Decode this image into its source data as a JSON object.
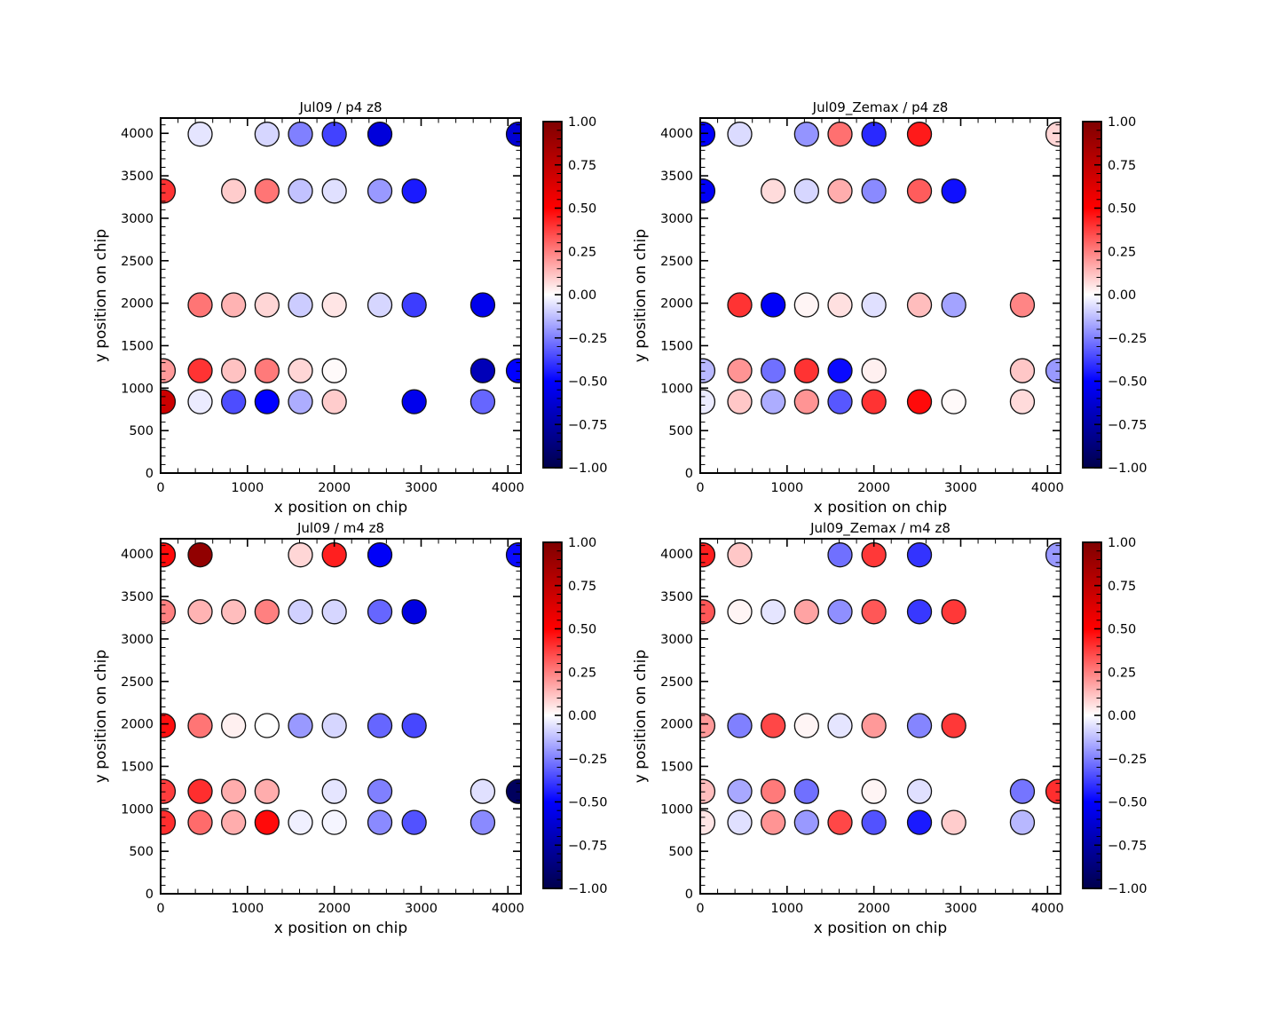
{
  "figure": {
    "background": "#ffffff"
  },
  "chart_data": [
    {
      "id": "jul09_p4",
      "type": "scatter",
      "title": "Jul09 / p4 z8",
      "xlabel": "x position on chip",
      "ylabel": "y position on chip",
      "xlim": [
        0,
        4150
      ],
      "ylim": [
        0,
        4180
      ],
      "x_tick_labels": [
        "0",
        "1000",
        "2000",
        "3000",
        "4000"
      ],
      "y_tick_labels": [
        "0",
        "500",
        "1000",
        "1500",
        "2000",
        "2500",
        "3000",
        "3500",
        "4000"
      ],
      "x_minor_step": 200,
      "y_minor_step": 100,
      "grid": false,
      "colorbar": {
        "cmap": "seismic",
        "vmin": -1,
        "vmax": 1,
        "minor_step": 0.05,
        "tick_labels": [
          "1.00",
          "0.75",
          "0.50",
          "0.25",
          "0.00",
          "−0.25",
          "−0.50",
          "−0.75",
          "−1.00"
        ]
      },
      "points": [
        {
          "x": 455,
          "y": 3990,
          "v": -0.05
        },
        {
          "x": 1225,
          "y": 3990,
          "v": -0.08
        },
        {
          "x": 1610,
          "y": 3990,
          "v": -0.25
        },
        {
          "x": 2000,
          "y": 3990,
          "v": -0.37
        },
        {
          "x": 2525,
          "y": 3990,
          "v": -0.6
        },
        {
          "x": 4120,
          "y": 3990,
          "v": -0.62
        },
        {
          "x": 30,
          "y": 3320,
          "v": 0.4
        },
        {
          "x": 840,
          "y": 3320,
          "v": 0.1
        },
        {
          "x": 1225,
          "y": 3320,
          "v": 0.27
        },
        {
          "x": 1610,
          "y": 3320,
          "v": -0.12
        },
        {
          "x": 2000,
          "y": 3320,
          "v": -0.06
        },
        {
          "x": 2525,
          "y": 3320,
          "v": -0.2
        },
        {
          "x": 2920,
          "y": 3320,
          "v": -0.45
        },
        {
          "x": 455,
          "y": 1980,
          "v": 0.27
        },
        {
          "x": 840,
          "y": 1980,
          "v": 0.15
        },
        {
          "x": 1225,
          "y": 1980,
          "v": 0.08
        },
        {
          "x": 1610,
          "y": 1980,
          "v": -0.1
        },
        {
          "x": 2000,
          "y": 1980,
          "v": 0.05
        },
        {
          "x": 2525,
          "y": 1980,
          "v": -0.08
        },
        {
          "x": 2920,
          "y": 1980,
          "v": -0.38
        },
        {
          "x": 3710,
          "y": 1980,
          "v": -0.55
        },
        {
          "x": 30,
          "y": 1205,
          "v": 0.2
        },
        {
          "x": 455,
          "y": 1205,
          "v": 0.4
        },
        {
          "x": 840,
          "y": 1205,
          "v": 0.12
        },
        {
          "x": 1225,
          "y": 1205,
          "v": 0.26
        },
        {
          "x": 1610,
          "y": 1205,
          "v": 0.08
        },
        {
          "x": 2000,
          "y": 1205,
          "v": 0.01
        },
        {
          "x": 3710,
          "y": 1205,
          "v": -0.7
        },
        {
          "x": 4120,
          "y": 1205,
          "v": -0.5
        },
        {
          "x": 30,
          "y": 840,
          "v": 0.7
        },
        {
          "x": 455,
          "y": 840,
          "v": -0.04
        },
        {
          "x": 840,
          "y": 840,
          "v": -0.35
        },
        {
          "x": 1225,
          "y": 840,
          "v": -0.5
        },
        {
          "x": 1610,
          "y": 840,
          "v": -0.16
        },
        {
          "x": 2000,
          "y": 840,
          "v": 0.1
        },
        {
          "x": 2920,
          "y": 840,
          "v": -0.55
        },
        {
          "x": 3710,
          "y": 840,
          "v": -0.3
        }
      ]
    },
    {
      "id": "jul09_zemax_p4",
      "type": "scatter",
      "title": "Jul09_Zemax / p4 z8",
      "xlabel": "x position on chip",
      "ylabel": "y position on chip",
      "xlim": [
        0,
        4150
      ],
      "ylim": [
        0,
        4180
      ],
      "x_tick_labels": [
        "0",
        "1000",
        "2000",
        "3000",
        "4000"
      ],
      "y_tick_labels": [
        "0",
        "500",
        "1000",
        "1500",
        "2000",
        "2500",
        "3000",
        "3500",
        "4000"
      ],
      "x_minor_step": 200,
      "y_minor_step": 100,
      "grid": false,
      "colorbar": {
        "cmap": "seismic",
        "vmin": -1,
        "vmax": 1,
        "minor_step": 0.05,
        "tick_labels": [
          "1.00",
          "0.75",
          "0.50",
          "0.25",
          "0.00",
          "−0.25",
          "−0.50",
          "−0.75",
          "−1.00"
        ]
      },
      "points": [
        {
          "x": 30,
          "y": 3990,
          "v": -0.5
        },
        {
          "x": 455,
          "y": 3990,
          "v": -0.07
        },
        {
          "x": 1225,
          "y": 3990,
          "v": -0.21
        },
        {
          "x": 1610,
          "y": 3990,
          "v": 0.28
        },
        {
          "x": 2000,
          "y": 3990,
          "v": -0.42
        },
        {
          "x": 2525,
          "y": 3990,
          "v": 0.45
        },
        {
          "x": 4120,
          "y": 3990,
          "v": 0.08
        },
        {
          "x": 30,
          "y": 3320,
          "v": -0.52
        },
        {
          "x": 840,
          "y": 3320,
          "v": 0.07
        },
        {
          "x": 1225,
          "y": 3320,
          "v": -0.08
        },
        {
          "x": 1610,
          "y": 3320,
          "v": 0.16
        },
        {
          "x": 2000,
          "y": 3320,
          "v": -0.23
        },
        {
          "x": 2525,
          "y": 3320,
          "v": 0.32
        },
        {
          "x": 2920,
          "y": 3320,
          "v": -0.47
        },
        {
          "x": 455,
          "y": 1980,
          "v": 0.4
        },
        {
          "x": 840,
          "y": 1980,
          "v": -0.52
        },
        {
          "x": 1225,
          "y": 1980,
          "v": 0.02
        },
        {
          "x": 1610,
          "y": 1980,
          "v": 0.06
        },
        {
          "x": 2000,
          "y": 1980,
          "v": -0.06
        },
        {
          "x": 2525,
          "y": 1980,
          "v": 0.13
        },
        {
          "x": 2920,
          "y": 1980,
          "v": -0.18
        },
        {
          "x": 3710,
          "y": 1980,
          "v": 0.24
        },
        {
          "x": 30,
          "y": 1205,
          "v": -0.14
        },
        {
          "x": 455,
          "y": 1205,
          "v": 0.21
        },
        {
          "x": 840,
          "y": 1205,
          "v": -0.28
        },
        {
          "x": 1225,
          "y": 1205,
          "v": 0.4
        },
        {
          "x": 1610,
          "y": 1205,
          "v": -0.48
        },
        {
          "x": 2000,
          "y": 1205,
          "v": 0.03
        },
        {
          "x": 3710,
          "y": 1205,
          "v": 0.11
        },
        {
          "x": 4120,
          "y": 1205,
          "v": -0.2
        },
        {
          "x": 30,
          "y": 840,
          "v": -0.04
        },
        {
          "x": 455,
          "y": 840,
          "v": 0.11
        },
        {
          "x": 840,
          "y": 840,
          "v": -0.16
        },
        {
          "x": 1225,
          "y": 840,
          "v": 0.21
        },
        {
          "x": 1610,
          "y": 840,
          "v": -0.33
        },
        {
          "x": 2000,
          "y": 840,
          "v": 0.4
        },
        {
          "x": 2525,
          "y": 840,
          "v": 0.48
        },
        {
          "x": 2920,
          "y": 840,
          "v": 0.01
        },
        {
          "x": 3710,
          "y": 840,
          "v": 0.07
        }
      ]
    },
    {
      "id": "jul09_m4",
      "type": "scatter",
      "title": "Jul09 / m4 z8",
      "xlabel": "x position on chip",
      "ylabel": "y position on chip",
      "xlim": [
        0,
        4150
      ],
      "ylim": [
        0,
        4180
      ],
      "x_tick_labels": [
        "0",
        "1000",
        "2000",
        "3000",
        "4000"
      ],
      "y_tick_labels": [
        "0",
        "500",
        "1000",
        "1500",
        "2000",
        "2500",
        "3000",
        "3500",
        "4000"
      ],
      "x_minor_step": 200,
      "y_minor_step": 100,
      "grid": false,
      "colorbar": {
        "cmap": "seismic",
        "vmin": -1,
        "vmax": 1,
        "minor_step": 0.05,
        "tick_labels": [
          "1.00",
          "0.75",
          "0.50",
          "0.25",
          "0.00",
          "−0.25",
          "−0.50",
          "−0.75",
          "−1.00"
        ]
      },
      "points": [
        {
          "x": 30,
          "y": 3990,
          "v": 0.48
        },
        {
          "x": 455,
          "y": 3990,
          "v": 0.93
        },
        {
          "x": 1610,
          "y": 3990,
          "v": 0.08
        },
        {
          "x": 2000,
          "y": 3990,
          "v": 0.44
        },
        {
          "x": 2525,
          "y": 3990,
          "v": -0.52
        },
        {
          "x": 4120,
          "y": 3990,
          "v": -0.48
        },
        {
          "x": 30,
          "y": 3320,
          "v": 0.25
        },
        {
          "x": 455,
          "y": 3320,
          "v": 0.15
        },
        {
          "x": 840,
          "y": 3320,
          "v": 0.13
        },
        {
          "x": 1225,
          "y": 3320,
          "v": 0.25
        },
        {
          "x": 1610,
          "y": 3320,
          "v": -0.09
        },
        {
          "x": 2000,
          "y": 3320,
          "v": -0.08
        },
        {
          "x": 2525,
          "y": 3320,
          "v": -0.3
        },
        {
          "x": 2920,
          "y": 3320,
          "v": -0.58
        },
        {
          "x": 30,
          "y": 1980,
          "v": 0.47
        },
        {
          "x": 455,
          "y": 1980,
          "v": 0.27
        },
        {
          "x": 840,
          "y": 1980,
          "v": 0.03
        },
        {
          "x": 1225,
          "y": 1980,
          "v": 0.0
        },
        {
          "x": 1610,
          "y": 1980,
          "v": -0.2
        },
        {
          "x": 2000,
          "y": 1980,
          "v": -0.08
        },
        {
          "x": 2525,
          "y": 1980,
          "v": -0.3
        },
        {
          "x": 2920,
          "y": 1980,
          "v": -0.36
        },
        {
          "x": 30,
          "y": 1205,
          "v": 0.38
        },
        {
          "x": 455,
          "y": 1205,
          "v": 0.41
        },
        {
          "x": 840,
          "y": 1205,
          "v": 0.16
        },
        {
          "x": 1225,
          "y": 1205,
          "v": 0.16
        },
        {
          "x": 2000,
          "y": 1205,
          "v": -0.05
        },
        {
          "x": 2525,
          "y": 1205,
          "v": -0.25
        },
        {
          "x": 3710,
          "y": 1205,
          "v": -0.06
        },
        {
          "x": 4120,
          "y": 1205,
          "v": -0.95
        },
        {
          "x": 30,
          "y": 840,
          "v": 0.41
        },
        {
          "x": 455,
          "y": 840,
          "v": 0.29
        },
        {
          "x": 840,
          "y": 840,
          "v": 0.16
        },
        {
          "x": 1225,
          "y": 840,
          "v": 0.48
        },
        {
          "x": 1610,
          "y": 840,
          "v": -0.03
        },
        {
          "x": 2000,
          "y": 840,
          "v": -0.02
        },
        {
          "x": 2525,
          "y": 840,
          "v": -0.23
        },
        {
          "x": 2920,
          "y": 840,
          "v": -0.34
        },
        {
          "x": 3710,
          "y": 840,
          "v": -0.23
        }
      ]
    },
    {
      "id": "jul09_zemax_m4",
      "type": "scatter",
      "title": "Jul09_Zemax / m4 z8",
      "xlabel": "x position on chip",
      "ylabel": "y position on chip",
      "xlim": [
        0,
        4150
      ],
      "ylim": [
        0,
        4180
      ],
      "x_tick_labels": [
        "0",
        "1000",
        "2000",
        "3000",
        "4000"
      ],
      "y_tick_labels": [
        "0",
        "500",
        "1000",
        "1500",
        "2000",
        "2500",
        "3000",
        "3500",
        "4000"
      ],
      "x_minor_step": 200,
      "y_minor_step": 100,
      "grid": false,
      "colorbar": {
        "cmap": "seismic",
        "vmin": -1,
        "vmax": 1,
        "minor_step": 0.05,
        "tick_labels": [
          "1.00",
          "0.75",
          "0.50",
          "0.25",
          "0.00",
          "−0.25",
          "−0.50",
          "−0.75",
          "−1.00"
        ]
      },
      "points": [
        {
          "x": 30,
          "y": 3990,
          "v": 0.44
        },
        {
          "x": 455,
          "y": 3990,
          "v": 0.11
        },
        {
          "x": 1610,
          "y": 3990,
          "v": -0.28
        },
        {
          "x": 2000,
          "y": 3990,
          "v": 0.39
        },
        {
          "x": 2525,
          "y": 3990,
          "v": -0.4
        },
        {
          "x": 4120,
          "y": 3990,
          "v": -0.2
        },
        {
          "x": 30,
          "y": 3320,
          "v": 0.33
        },
        {
          "x": 455,
          "y": 3320,
          "v": 0.02
        },
        {
          "x": 840,
          "y": 3320,
          "v": -0.05
        },
        {
          "x": 1225,
          "y": 3320,
          "v": 0.18
        },
        {
          "x": 1610,
          "y": 3320,
          "v": -0.22
        },
        {
          "x": 2000,
          "y": 3320,
          "v": 0.33
        },
        {
          "x": 2525,
          "y": 3320,
          "v": -0.39
        },
        {
          "x": 2920,
          "y": 3320,
          "v": 0.39
        },
        {
          "x": 30,
          "y": 1980,
          "v": 0.2
        },
        {
          "x": 455,
          "y": 1980,
          "v": -0.25
        },
        {
          "x": 840,
          "y": 1980,
          "v": 0.36
        },
        {
          "x": 1225,
          "y": 1980,
          "v": 0.02
        },
        {
          "x": 1610,
          "y": 1980,
          "v": -0.05
        },
        {
          "x": 2000,
          "y": 1980,
          "v": 0.2
        },
        {
          "x": 2525,
          "y": 1980,
          "v": -0.24
        },
        {
          "x": 2920,
          "y": 1980,
          "v": 0.39
        },
        {
          "x": 30,
          "y": 1205,
          "v": 0.13
        },
        {
          "x": 455,
          "y": 1205,
          "v": -0.17
        },
        {
          "x": 840,
          "y": 1205,
          "v": 0.26
        },
        {
          "x": 1225,
          "y": 1205,
          "v": -0.28
        },
        {
          "x": 2000,
          "y": 1205,
          "v": 0.02
        },
        {
          "x": 2525,
          "y": 1205,
          "v": -0.06
        },
        {
          "x": 3710,
          "y": 1205,
          "v": -0.27
        },
        {
          "x": 4120,
          "y": 1205,
          "v": 0.41
        },
        {
          "x": 30,
          "y": 840,
          "v": 0.05
        },
        {
          "x": 455,
          "y": 840,
          "v": -0.06
        },
        {
          "x": 840,
          "y": 840,
          "v": 0.21
        },
        {
          "x": 1225,
          "y": 840,
          "v": -0.2
        },
        {
          "x": 1610,
          "y": 840,
          "v": 0.36
        },
        {
          "x": 2000,
          "y": 840,
          "v": -0.34
        },
        {
          "x": 2525,
          "y": 840,
          "v": -0.45
        },
        {
          "x": 2920,
          "y": 840,
          "v": 0.1
        },
        {
          "x": 3710,
          "y": 840,
          "v": -0.14
        }
      ]
    }
  ]
}
